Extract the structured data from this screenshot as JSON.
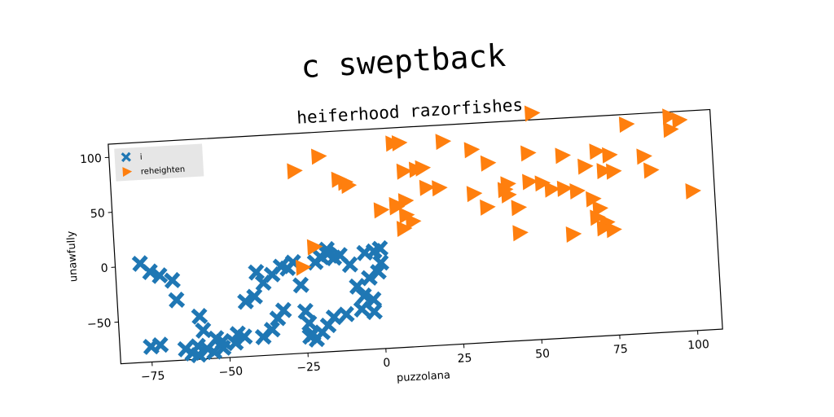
{
  "title": "c sweptback",
  "chart_data": {
    "type": "scatter",
    "title": "heiferhood razorfishes",
    "xlabel": "puzzolana",
    "ylabel": "unawfully",
    "xlim": [
      -85,
      108
    ],
    "ylim": [
      -88,
      112
    ],
    "xticks": [
      -75,
      -50,
      -25,
      0,
      25,
      50,
      75,
      100
    ],
    "yticks": [
      -50,
      0,
      50,
      100
    ],
    "grid": false,
    "legend": "upper-left",
    "series": [
      {
        "name": "i",
        "marker": "x-filled",
        "color": "#1f77b4",
        "points": [
          [
            -77,
            2
          ],
          [
            -74,
            -6
          ],
          [
            -71,
            -10
          ],
          [
            -67,
            -15
          ],
          [
            -66,
            -33
          ],
          [
            -59,
            -49
          ],
          [
            -58,
            -62
          ],
          [
            -54,
            -70
          ],
          [
            -52,
            -73
          ],
          [
            -52,
            -79
          ],
          [
            -55,
            -82
          ],
          [
            -57,
            -79
          ],
          [
            -60,
            -76
          ],
          [
            -60,
            -84
          ],
          [
            -62,
            -82
          ],
          [
            -64,
            -78
          ],
          [
            -72,
            -73
          ],
          [
            -75,
            -74
          ],
          [
            -48,
            -75
          ],
          [
            -47,
            -67
          ],
          [
            -40,
            -12
          ],
          [
            -44,
            -38
          ],
          [
            -41,
            -34
          ],
          [
            -38,
            -22
          ],
          [
            -35,
            -15
          ],
          [
            -32,
            -8
          ],
          [
            -30,
            -10
          ],
          [
            -28,
            -5
          ],
          [
            -26,
            -26
          ],
          [
            -25,
            -50
          ],
          [
            -24,
            -61
          ],
          [
            -23,
            -71
          ],
          [
            -21,
            -6
          ],
          [
            -19,
            -2
          ],
          [
            -17,
            1
          ],
          [
            -17,
            5
          ],
          [
            -15,
            -3
          ],
          [
            -13,
            -1
          ],
          [
            -10,
            -10
          ],
          [
            -8,
            -30
          ],
          [
            -6,
            -39
          ],
          [
            -3,
            -43
          ],
          [
            -3,
            -54
          ],
          [
            -2,
            1
          ],
          [
            0,
            3
          ],
          [
            -5,
            0
          ],
          [
            0,
            -10
          ],
          [
            -1,
            -18
          ],
          [
            -4,
            -23
          ],
          [
            -7,
            -51
          ],
          [
            -12,
            -55
          ],
          [
            -16,
            -57
          ],
          [
            -18,
            -64
          ],
          [
            -20,
            -70
          ],
          [
            -22,
            -76
          ],
          [
            -24,
            -73
          ],
          [
            -32,
            -48
          ],
          [
            -36,
            -65
          ],
          [
            -39,
            -71
          ],
          [
            -45,
            -70
          ],
          [
            -34,
            -55
          ]
        ]
      },
      {
        "name": "reheighten",
        "marker": "triangle-right",
        "color": "#ff7f0e",
        "points": [
          [
            -26,
            78
          ],
          [
            -18,
            90
          ],
          [
            -12,
            68
          ],
          [
            -10,
            65
          ],
          [
            -9,
            62
          ],
          [
            6,
            98
          ],
          [
            8,
            98
          ],
          [
            22,
            97
          ],
          [
            9,
            72
          ],
          [
            13,
            73
          ],
          [
            15,
            74
          ],
          [
            16,
            56
          ],
          [
            20,
            55
          ],
          [
            31,
            88
          ],
          [
            36,
            75
          ],
          [
            49,
            82
          ],
          [
            60,
            78
          ],
          [
            71,
            80
          ],
          [
            75,
            76
          ],
          [
            81,
            103
          ],
          [
            95,
            96
          ],
          [
            95,
            108
          ],
          [
            98,
            104
          ],
          [
            88,
            60
          ],
          [
            76,
            61
          ],
          [
            73,
            62
          ],
          [
            67,
            67
          ],
          [
            49,
            56
          ],
          [
            53,
            54
          ],
          [
            56,
            48
          ],
          [
            60,
            48
          ],
          [
            64,
            45
          ],
          [
            69,
            37
          ],
          [
            71,
            28
          ],
          [
            70,
            20
          ],
          [
            73,
            15
          ],
          [
            75,
            8
          ],
          [
            72,
            10
          ],
          [
            62,
            6
          ],
          [
            42,
            55
          ],
          [
            41,
            50
          ],
          [
            42,
            45
          ],
          [
            45,
            33
          ],
          [
            45,
            10
          ],
          [
            35,
            35
          ],
          [
            31,
            48
          ],
          [
            9,
            45
          ],
          [
            6,
            42
          ],
          [
            1,
            38
          ],
          [
            8,
            20
          ],
          [
            9,
            32
          ],
          [
            11,
            26
          ],
          [
            6,
            40
          ],
          [
            51,
            118
          ],
          [
            101,
            39
          ],
          [
            86,
            73
          ],
          [
            -21,
            8
          ],
          [
            -25,
            -10
          ]
        ]
      }
    ]
  }
}
